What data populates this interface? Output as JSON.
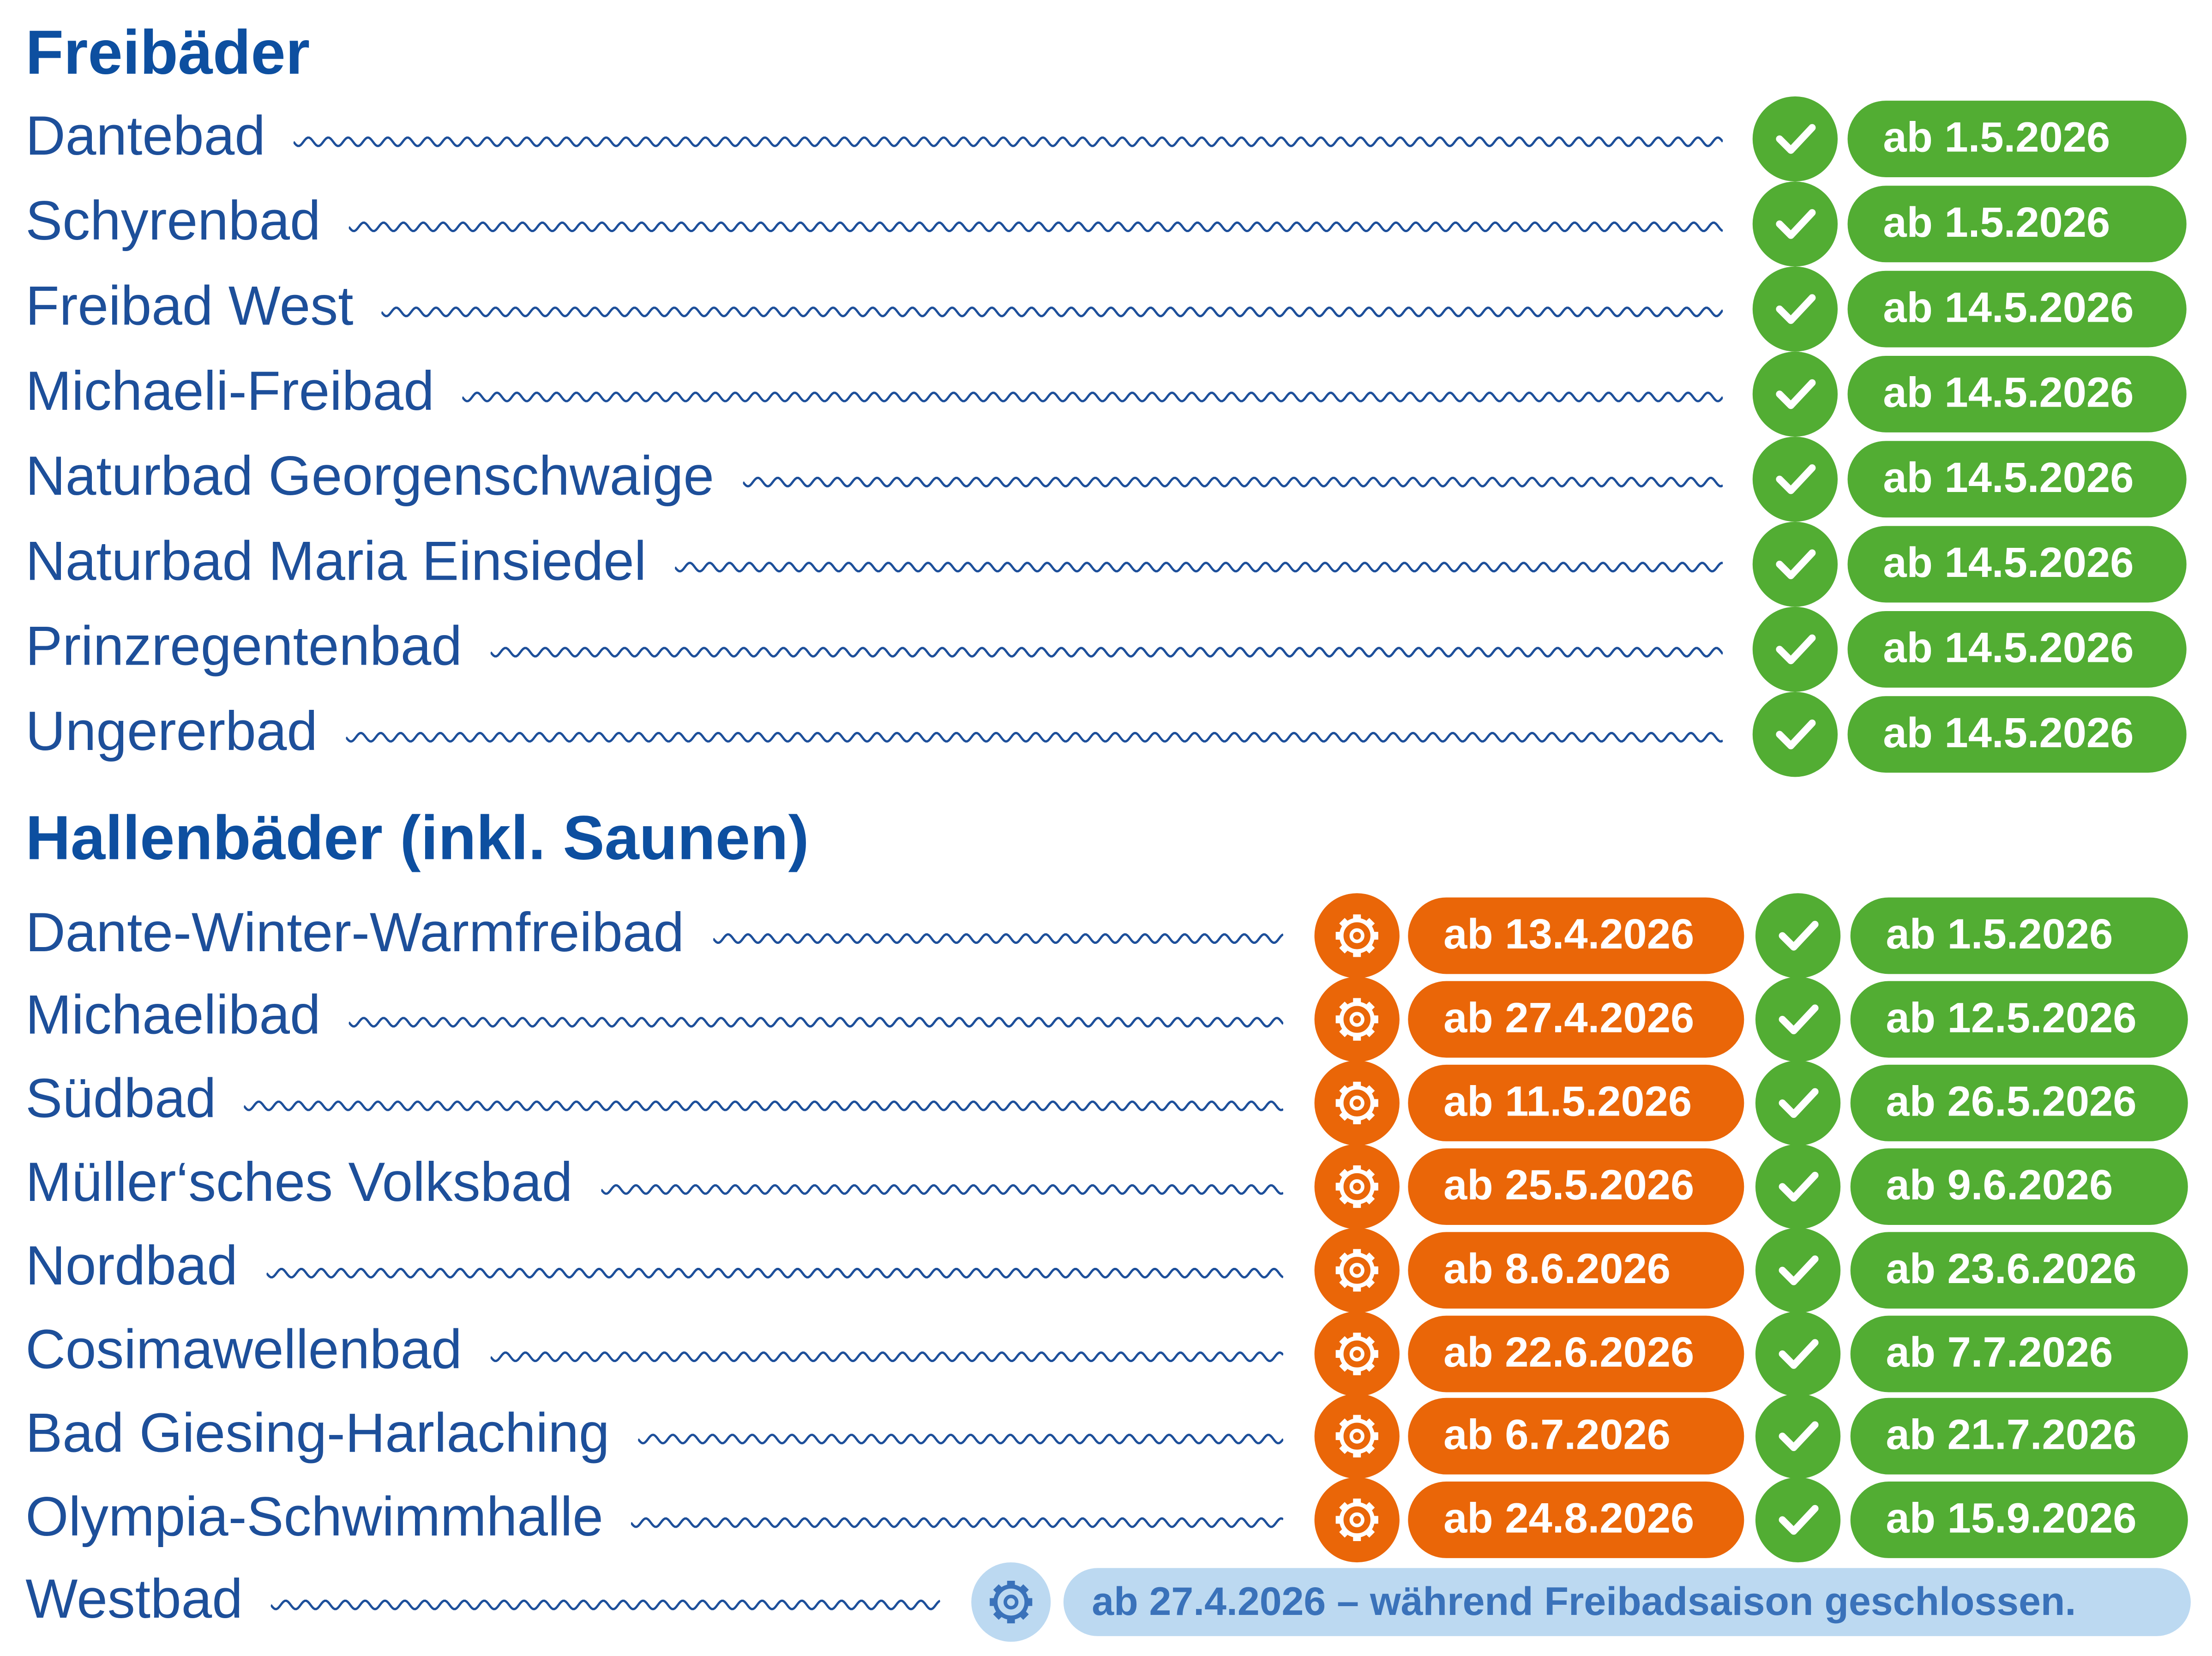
{
  "colors": {
    "green": "#52ad33",
    "orange": "#ea6608",
    "light_blue": "#bcd9f1",
    "text_blue": "#1d4f9a"
  },
  "freibaeder": {
    "title": "Freibäder",
    "rows": [
      {
        "name": "Dantebad",
        "open": "ab 1.5.2026"
      },
      {
        "name": "Schyrenbad",
        "open": "ab 1.5.2026"
      },
      {
        "name": "Freibad West",
        "open": "ab 14.5.2026"
      },
      {
        "name": "Michaeli-Freibad",
        "open": "ab 14.5.2026"
      },
      {
        "name": "Naturbad Georgenschwaige",
        "open": "ab 14.5.2026"
      },
      {
        "name": "Naturbad Maria Einsiedel",
        "open": "ab 14.5.2026"
      },
      {
        "name": "Prinzregentenbad",
        "open": "ab 14.5.2026"
      },
      {
        "name": "Ungererbad",
        "open": "ab 14.5.2026"
      }
    ]
  },
  "hallenbaeder": {
    "title": "Hallenbäder (inkl. Saunen)",
    "rows": [
      {
        "name": "Dante-Winter-Warmfreibad",
        "maintenance": "ab 13.4.2026",
        "open": "ab 1.5.2026"
      },
      {
        "name": "Michaelibad",
        "maintenance": "ab 27.4.2026",
        "open": "ab 12.5.2026"
      },
      {
        "name": "Südbad",
        "maintenance": "ab 11.5.2026",
        "open": "ab 26.5.2026"
      },
      {
        "name": "Müller‘sches Volksbad",
        "maintenance": "ab 25.5.2026",
        "open": "ab 9.6.2026"
      },
      {
        "name": "Nordbad",
        "maintenance": "ab 8.6.2026",
        "open": "ab 23.6.2026"
      },
      {
        "name": "Cosimawellenbad",
        "maintenance": "ab 22.6.2026",
        "open": "ab 7.7.2026"
      },
      {
        "name": "Bad Giesing-Harlaching",
        "maintenance": "ab 6.7.2026",
        "open": "ab 21.7.2026"
      },
      {
        "name": "Olympia-Schwimmhalle",
        "maintenance": "ab 24.8.2026",
        "open": "ab 15.9.2026"
      }
    ],
    "westbad": {
      "name": "Westbad",
      "note": "ab 27.4.2026 – während Freibadsaison geschlossen."
    }
  }
}
